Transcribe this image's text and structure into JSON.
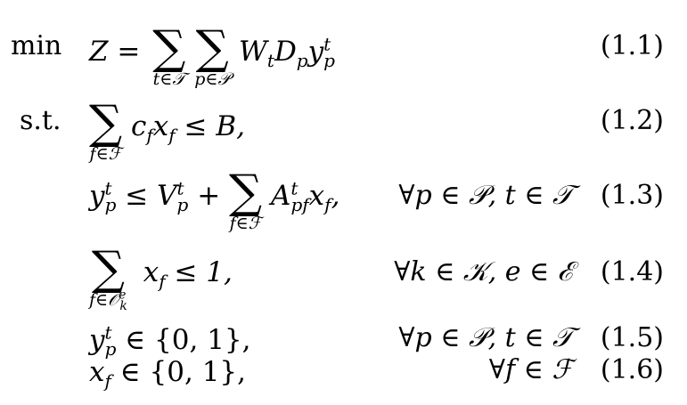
{
  "labels": {
    "min": "min",
    "st": "s.t."
  },
  "equations": [
    {
      "id": "eq1",
      "number": "(1.1)",
      "condition": ""
    },
    {
      "id": "eq2",
      "number": "(1.2)",
      "condition": ""
    },
    {
      "id": "eq3",
      "number": "(1.3)",
      "condition": "∀p ∈ 𝒫, t ∈ 𝒯"
    },
    {
      "id": "eq4",
      "number": "(1.4)",
      "condition": "∀k ∈ 𝒦, e ∈ ℰ"
    },
    {
      "id": "eq5",
      "number": "(1.5)",
      "condition": "∀p ∈ 𝒫, t ∈ 𝒯"
    },
    {
      "id": "eq6",
      "number": "(1.6)",
      "condition": "∀f ∈ ℱ"
    }
  ],
  "math": {
    "obj_lhs": "Z =",
    "sum_t": "t∈𝒯",
    "sum_p": "p∈𝒫",
    "sum_f": "f∈ℱ",
    "sum_ok": "f∈𝒪",
    "set01": "∈ {0, 1},",
    "le_B": "≤ B,",
    "le_1": "≤ 1,"
  }
}
